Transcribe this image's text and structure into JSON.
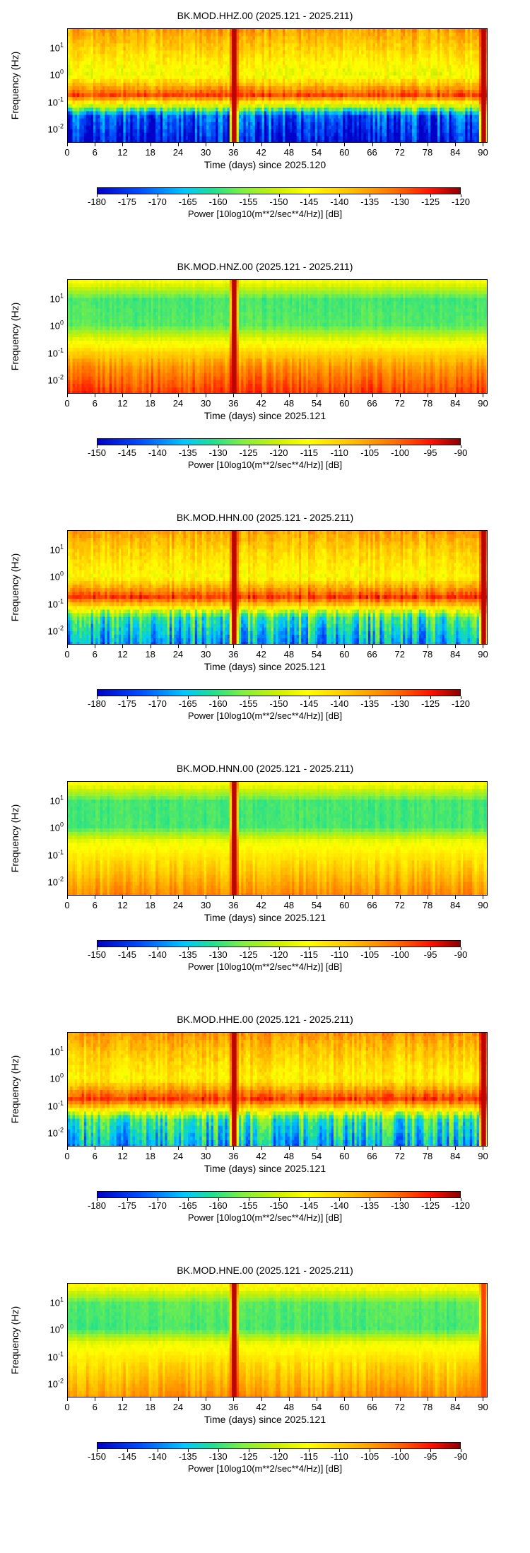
{
  "panels": [
    {
      "title": "BK.MOD.HHZ.00 (2025.121 - 2025.211)",
      "ylabel": "Frequency (Hz)",
      "xlabel": "Time (days) since 2025.120",
      "colorbar_label": "Power [10log10(m**2/sec**4/Hz)] [dB]",
      "colorbar_ticks": [
        "-180",
        "-175",
        "-170",
        "-165",
        "-160",
        "-155",
        "-150",
        "-145",
        "-140",
        "-135",
        "-130",
        "-125",
        "-120"
      ]
    },
    {
      "title": "BK.MOD.HNZ.00 (2025.121 - 2025.211)",
      "ylabel": "Frequency (Hz)",
      "xlabel": "Time (days) since 2025.121",
      "colorbar_label": "Power [10log10(m**2/sec**4/Hz)] [dB]",
      "colorbar_ticks": [
        "-150",
        "-145",
        "-140",
        "-135",
        "-130",
        "-125",
        "-120",
        "-115",
        "-110",
        "-105",
        "-100",
        "-95",
        "-90"
      ]
    },
    {
      "title": "BK.MOD.HHN.00 (2025.121 - 2025.211)",
      "ylabel": "Frequency (Hz)",
      "xlabel": "Time (days) since 2025.121",
      "colorbar_label": "Power [10log10(m**2/sec**4/Hz)] [dB]",
      "colorbar_ticks": [
        "-180",
        "-175",
        "-170",
        "-165",
        "-160",
        "-155",
        "-150",
        "-145",
        "-140",
        "-135",
        "-130",
        "-125",
        "-120"
      ]
    },
    {
      "title": "BK.MOD.HNN.00 (2025.121 - 2025.211)",
      "ylabel": "Frequency (Hz)",
      "xlabel": "Time (days) since 2025.121",
      "colorbar_label": "Power [10log10(m**2/sec**4/Hz)] [dB]",
      "colorbar_ticks": [
        "-150",
        "-145",
        "-140",
        "-135",
        "-130",
        "-125",
        "-120",
        "-115",
        "-110",
        "-105",
        "-100",
        "-95",
        "-90"
      ]
    },
    {
      "title": "BK.MOD.HHE.00 (2025.121 - 2025.211)",
      "ylabel": "Frequency (Hz)",
      "xlabel": "Time (days) since 2025.121",
      "colorbar_label": "Power [10log10(m**2/sec**4/Hz)] [dB]",
      "colorbar_ticks": [
        "-180",
        "-175",
        "-170",
        "-165",
        "-160",
        "-155",
        "-150",
        "-145",
        "-140",
        "-135",
        "-130",
        "-125",
        "-120"
      ]
    },
    {
      "title": "BK.MOD.HNE.00 (2025.121 - 2025.211)",
      "ylabel": "Frequency (Hz)",
      "xlabel": "Time (days) since 2025.121",
      "colorbar_label": "Power [10log10(m**2/sec**4/Hz)] [dB]",
      "colorbar_ticks": [
        "-150",
        "-145",
        "-140",
        "-135",
        "-130",
        "-125",
        "-120",
        "-115",
        "-110",
        "-105",
        "-100",
        "-95",
        "-90"
      ]
    }
  ],
  "chart_data": [
    {
      "type": "heatmap",
      "title": "BK.MOD.HHZ.00 (2025.121 - 2025.211)",
      "xlabel": "Time (days) since 2025.120",
      "ylabel": "Frequency (Hz)",
      "x_ticks": [
        0,
        6,
        12,
        18,
        24,
        30,
        36,
        42,
        48,
        54,
        60,
        66,
        72,
        78,
        84,
        90
      ],
      "xlim": [
        0,
        91
      ],
      "y_scale": "log",
      "y_ticks": [
        "10^1",
        "10^0",
        "10^-1",
        "10^-2"
      ],
      "ylim": [
        0.003,
        50
      ],
      "colorbar": {
        "label": "Power [10log10(m**2/sec**4/Hz)] [dB]",
        "range": [
          -180,
          -120
        ]
      },
      "profile": {
        "freq_exp": [
          1.7,
          1.0,
          0.0,
          -0.75,
          -1.1,
          -1.5,
          -2.5
        ],
        "power_db": [
          -135,
          -140,
          -147,
          -128,
          -148,
          -172,
          -178
        ]
      },
      "variability_db": 10,
      "events": [
        {
          "day": 36,
          "power_db": -122
        },
        {
          "day": 90,
          "power_db": -122
        }
      ]
    },
    {
      "type": "heatmap",
      "title": "BK.MOD.HNZ.00 (2025.121 - 2025.211)",
      "xlabel": "Time (days) since 2025.121",
      "ylabel": "Frequency (Hz)",
      "x_ticks": [
        0,
        6,
        12,
        18,
        24,
        30,
        36,
        42,
        48,
        54,
        60,
        66,
        72,
        78,
        84,
        90
      ],
      "xlim": [
        0,
        91
      ],
      "y_scale": "log",
      "y_ticks": [
        "10^1",
        "10^0",
        "10^-1",
        "10^-2"
      ],
      "ylim": [
        0.003,
        50
      ],
      "colorbar": {
        "label": "Power [10log10(m**2/sec**4/Hz)] [dB]",
        "range": [
          -150,
          -90
        ]
      },
      "profile": {
        "freq_exp": [
          1.7,
          1.0,
          0.0,
          -0.5,
          -1.0,
          -1.5,
          -2.5
        ],
        "power_db": [
          -115,
          -129,
          -128,
          -118,
          -110,
          -104,
          -97
        ]
      },
      "variability_db": 4,
      "events": [
        {
          "day": 36,
          "power_db": -92
        }
      ]
    },
    {
      "type": "heatmap",
      "title": "BK.MOD.HHN.00 (2025.121 - 2025.211)",
      "xlabel": "Time (days) since 2025.121",
      "ylabel": "Frequency (Hz)",
      "x_ticks": [
        0,
        6,
        12,
        18,
        24,
        30,
        36,
        42,
        48,
        54,
        60,
        66,
        72,
        78,
        84,
        90
      ],
      "xlim": [
        0,
        91
      ],
      "y_scale": "log",
      "y_ticks": [
        "10^1",
        "10^0",
        "10^-1",
        "10^-2"
      ],
      "ylim": [
        0.003,
        50
      ],
      "colorbar": {
        "label": "Power [10log10(m**2/sec**4/Hz)] [dB]",
        "range": [
          -180,
          -120
        ]
      },
      "profile": {
        "freq_exp": [
          1.7,
          1.0,
          0.0,
          -0.75,
          -1.1,
          -1.5,
          -2.5
        ],
        "power_db": [
          -135,
          -140,
          -145,
          -127,
          -142,
          -160,
          -168
        ]
      },
      "variability_db": 10,
      "events": [
        {
          "day": 36,
          "power_db": -122
        },
        {
          "day": 90,
          "power_db": -122
        }
      ]
    },
    {
      "type": "heatmap",
      "title": "BK.MOD.HNN.00 (2025.121 - 2025.211)",
      "xlabel": "Time (days) since 2025.121",
      "ylabel": "Frequency (Hz)",
      "x_ticks": [
        0,
        6,
        12,
        18,
        24,
        30,
        36,
        42,
        48,
        54,
        60,
        66,
        72,
        78,
        84,
        90
      ],
      "xlim": [
        0,
        91
      ],
      "y_scale": "log",
      "y_ticks": [
        "10^1",
        "10^0",
        "10^-1",
        "10^-2"
      ],
      "ylim": [
        0.003,
        50
      ],
      "colorbar": {
        "label": "Power [10log10(m**2/sec**4/Hz)] [dB]",
        "range": [
          -150,
          -90
        ]
      },
      "profile": {
        "freq_exp": [
          1.7,
          1.0,
          0.0,
          -0.5,
          -1.0,
          -1.5,
          -2.5
        ],
        "power_db": [
          -114,
          -129,
          -129,
          -117,
          -113,
          -110,
          -103
        ]
      },
      "variability_db": 4,
      "events": [
        {
          "day": 36,
          "power_db": -92
        }
      ]
    },
    {
      "type": "heatmap",
      "title": "BK.MOD.HHE.00 (2025.121 - 2025.211)",
      "xlabel": "Time (days) since 2025.121",
      "ylabel": "Frequency (Hz)",
      "x_ticks": [
        0,
        6,
        12,
        18,
        24,
        30,
        36,
        42,
        48,
        54,
        60,
        66,
        72,
        78,
        84,
        90
      ],
      "xlim": [
        0,
        91
      ],
      "y_scale": "log",
      "y_ticks": [
        "10^1",
        "10^0",
        "10^-1",
        "10^-2"
      ],
      "ylim": [
        0.003,
        50
      ],
      "colorbar": {
        "label": "Power [10log10(m**2/sec**4/Hz)] [dB]",
        "range": [
          -180,
          -120
        ]
      },
      "profile": {
        "freq_exp": [
          1.7,
          1.0,
          0.0,
          -0.75,
          -1.1,
          -1.5,
          -2.5
        ],
        "power_db": [
          -134,
          -139,
          -144,
          -127,
          -142,
          -160,
          -167
        ]
      },
      "variability_db": 10,
      "events": [
        {
          "day": 36,
          "power_db": -122
        },
        {
          "day": 90,
          "power_db": -122
        }
      ]
    },
    {
      "type": "heatmap",
      "title": "BK.MOD.HNE.00 (2025.121 - 2025.211)",
      "xlabel": "Time (days) since 2025.121",
      "ylabel": "Frequency (Hz)",
      "x_ticks": [
        0,
        6,
        12,
        18,
        24,
        30,
        36,
        42,
        48,
        54,
        60,
        66,
        72,
        78,
        84,
        90
      ],
      "xlim": [
        0,
        91
      ],
      "y_scale": "log",
      "y_ticks": [
        "10^1",
        "10^0",
        "10^-1",
        "10^-2"
      ],
      "ylim": [
        0.003,
        50
      ],
      "colorbar": {
        "label": "Power [10log10(m**2/sec**4/Hz)] [dB]",
        "range": [
          -150,
          -90
        ]
      },
      "profile": {
        "freq_exp": [
          1.7,
          1.0,
          0.0,
          -0.5,
          -1.0,
          -1.5,
          -2.5
        ],
        "power_db": [
          -113,
          -128,
          -129,
          -117,
          -113,
          -110,
          -104
        ]
      },
      "variability_db": 4,
      "events": [
        {
          "day": 36,
          "power_db": -92
        },
        {
          "day": 90,
          "power_db": -98
        }
      ]
    }
  ]
}
